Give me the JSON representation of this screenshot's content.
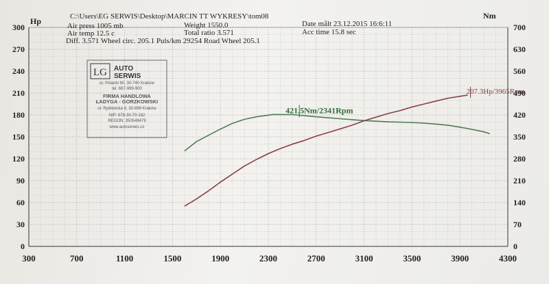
{
  "chart_data": {
    "type": "line",
    "header": {
      "file_path": "C:\\Users\\EG SERWIS\\Desktop\\MARCIN TT WYKRESY\\tom08",
      "air_press": "Air press  1005 mb",
      "air_temp": "Air temp  12.5 c",
      "diff": "Diff.    3.571  Wheel circ. 205.1  Puls/km  29254  Road Wheel 205.1",
      "weight": "Weight    1550.0",
      "total_ratio": "Total ratio 3.571",
      "date": "Date målt 23.12.2015 16:6:11",
      "acc_time": "Acc time   15.8 sec"
    },
    "left_axis": {
      "unit": "Hp",
      "range": [
        0,
        300
      ],
      "ticks": [
        "0",
        "30",
        "60",
        "90",
        "120",
        "150",
        "180",
        "210",
        "240",
        "270",
        "300"
      ]
    },
    "right_axis": {
      "unit": "Nm",
      "range": [
        0,
        700
      ],
      "ticks": [
        "0",
        "70",
        "140",
        "210",
        "280",
        "350",
        "420",
        "490",
        "560",
        "630",
        "700"
      ]
    },
    "x_axis": {
      "range": [
        300,
        4300
      ],
      "ticks": [
        "300",
        "700",
        "1100",
        "1500",
        "1900",
        "2300",
        "2700",
        "3100",
        "3500",
        "3900",
        "4300"
      ]
    },
    "grid": true,
    "series": [
      {
        "axis": "right",
        "color": "#4f7a55",
        "x": [
          1600,
          1700,
          1800,
          1900,
          2000,
          2100,
          2200,
          2341,
          2500,
          2600,
          2700,
          2800,
          2900,
          3000,
          3100,
          3200,
          3300,
          3400,
          3500,
          3600,
          3700,
          3800,
          3900,
          4000,
          4100,
          4150
        ],
        "y": [
          305,
          335,
          355,
          375,
          393,
          406,
          414,
          421.5,
          421,
          418,
          414,
          411,
          408,
          405,
          402,
          400,
          398,
          397,
          396,
          394,
          391,
          387,
          381,
          374,
          366,
          360
        ]
      },
      {
        "axis": "left",
        "color": "#8a3e45",
        "x": [
          1600,
          1700,
          1800,
          1900,
          2000,
          2100,
          2200,
          2300,
          2400,
          2500,
          2600,
          2700,
          2800,
          2900,
          3000,
          3100,
          3200,
          3300,
          3400,
          3500,
          3600,
          3700,
          3800,
          3965
        ],
        "y": [
          55,
          65,
          76,
          88,
          99,
          110,
          119,
          127,
          134,
          140,
          145,
          151,
          156,
          161,
          166,
          172,
          177,
          182,
          186,
          191,
          195,
          199,
          203,
          207.3
        ]
      }
    ],
    "annotations": [
      {
        "text": "421.5Nm/2341Rpm",
        "x": 2341,
        "y": 421.5,
        "axis": "right",
        "color": "#2f6b3a"
      },
      {
        "text": "207.3Hp/3965Rpm",
        "x": 3965,
        "y": 207.3,
        "axis": "left",
        "color": "#8a3e45"
      }
    ]
  },
  "stamp": {
    "logo": "LG",
    "brand_line1": "AUTO",
    "brand_line2": "SERWIS",
    "lines": [
      "ul. Półanki 80, 30-740 Kraków",
      "tel. 667-999-900",
      "FIRMA HANDLOWA",
      "ŁADYGA - GORZKOWSKI",
      "ul. Rybitwicka 8, 30-899 Kraków",
      "NIP: 678-30-70-162",
      "REGON: 350549479",
      "www.autoserwis.co"
    ]
  }
}
